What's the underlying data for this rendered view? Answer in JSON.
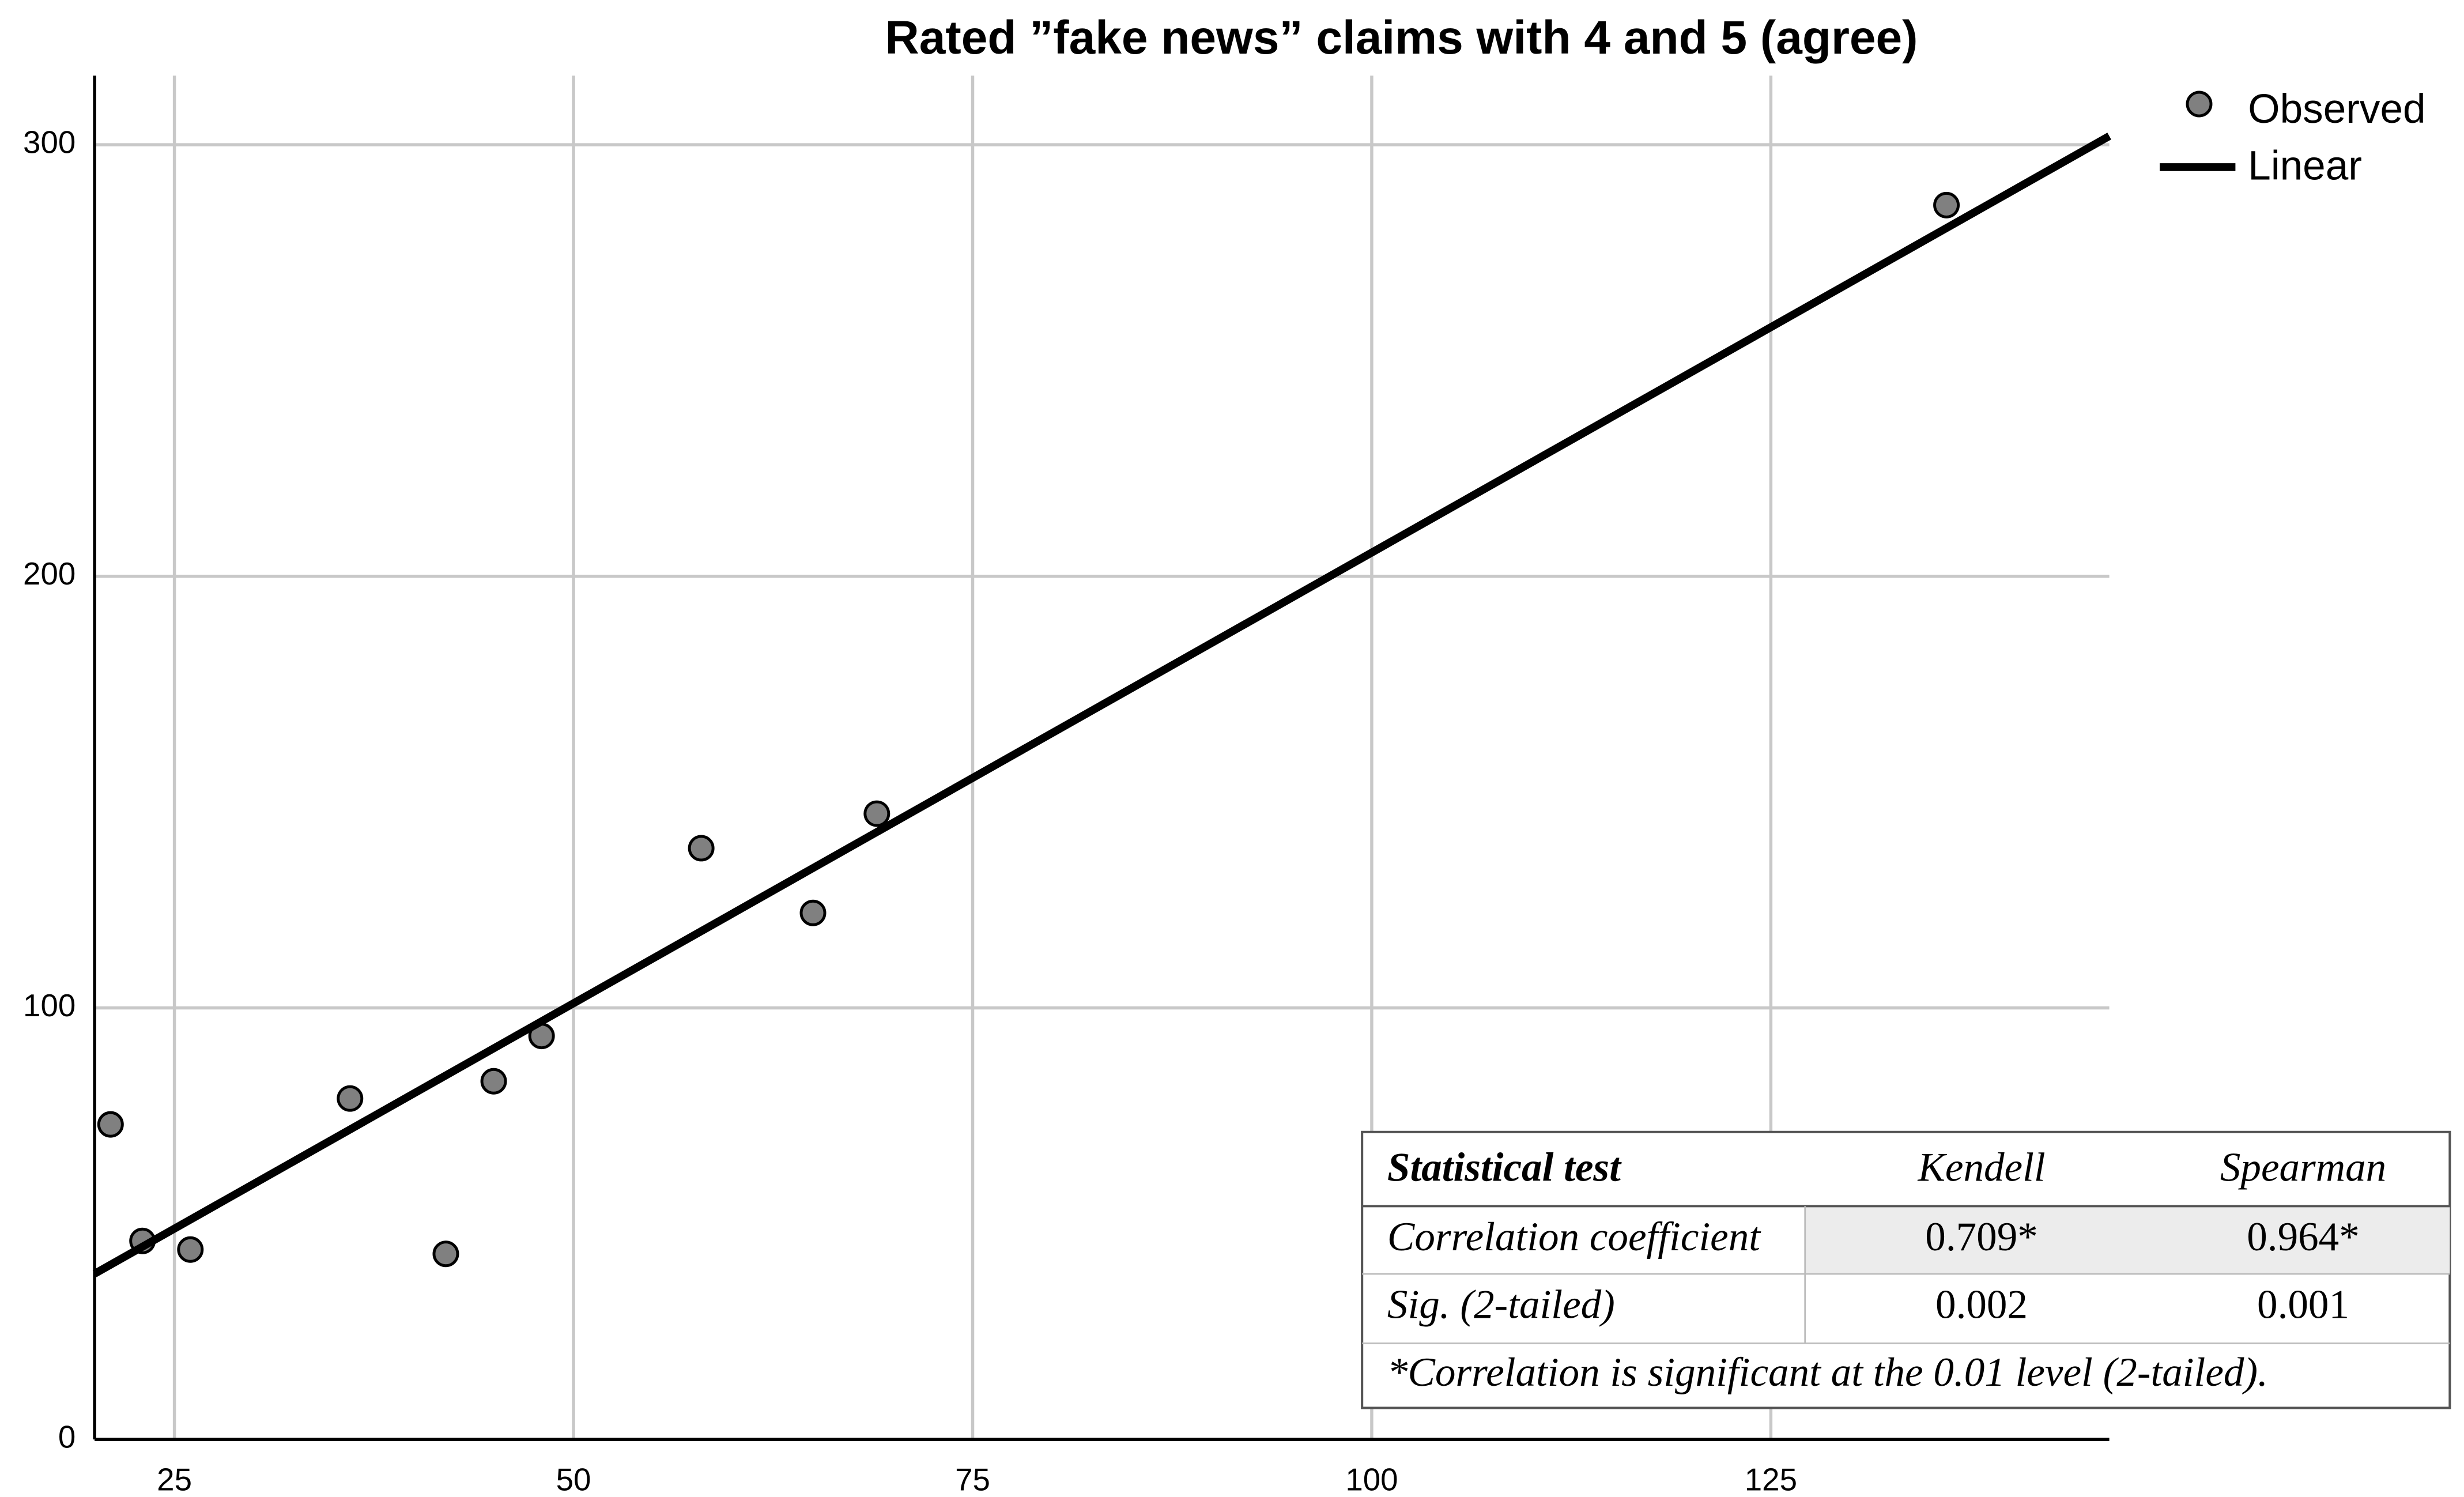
{
  "chart_data": {
    "type": "scatter",
    "title": "Rated ”fake news” claims with 4 and 5 (agree)",
    "xlim": [
      20,
      146.2
    ],
    "ylim": [
      0,
      316
    ],
    "xticks": [
      25,
      50,
      75,
      100,
      125
    ],
    "yticks": [
      0,
      100,
      200,
      300
    ],
    "grid": true,
    "legend": "top-right",
    "series": [
      {
        "name": "Observed",
        "color": "#808080",
        "x": [
          21,
          23,
          26,
          36,
          42,
          45,
          48,
          58,
          65,
          69,
          136
        ],
        "values": [
          73,
          46,
          44,
          79,
          43,
          83,
          93.5,
          137,
          122,
          145,
          286
        ]
      },
      {
        "name": "Linear",
        "type": "line",
        "color": "#000000",
        "x": [
          20,
          146.2
        ],
        "values": [
          38.4,
          302
        ]
      }
    ],
    "table": {
      "header": [
        "Statistical test",
        "Kendell",
        "Spearman"
      ],
      "rows": [
        [
          "Correlation coefficient",
          "0.709*",
          "0.964*"
        ],
        [
          "Sig. (2-tailed)",
          "0.002",
          "0.001"
        ]
      ],
      "note": "*Correlation is significant at the 0.01 level (2-tailed)."
    }
  }
}
